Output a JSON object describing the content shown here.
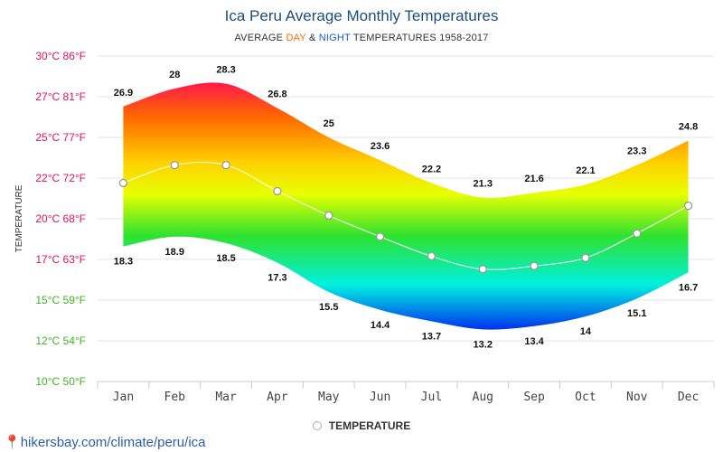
{
  "title": "Ica Peru Average Monthly Temperatures",
  "subtitle": {
    "prefix": "AVERAGE ",
    "day": "DAY",
    "mid": " & ",
    "night": "NIGHT",
    "suffix": " TEMPERATURES 1958-2017"
  },
  "legend": {
    "label": "TEMPERATURE"
  },
  "source": {
    "pin_icon": "location-pin-icon",
    "text": "hikersbay.com/climate/peru/ica"
  },
  "colors": {
    "title": "#1b4e7a",
    "day": "#ff6a00",
    "night": "#1a5bd6"
  },
  "chart_data": {
    "type": "area",
    "categories": [
      "Jan",
      "Feb",
      "Mar",
      "Apr",
      "May",
      "Jun",
      "Jul",
      "Aug",
      "Sep",
      "Oct",
      "Nov",
      "Dec"
    ],
    "day": [
      26.9,
      28,
      28.3,
      26.8,
      25,
      23.6,
      22.2,
      21.3,
      21.6,
      22.1,
      23.3,
      24.8
    ],
    "night": [
      18.3,
      18.9,
      18.5,
      17.3,
      15.5,
      14.4,
      13.7,
      13.2,
      13.4,
      14,
      15.1,
      16.7
    ],
    "series": [
      {
        "name": "TEMPERATURE",
        "values": [
          22.2,
          23.3,
          23.3,
          21.7,
          20.2,
          18.9,
          17.7,
          16.9,
          17.1,
          17.6,
          19.1,
          20.8
        ]
      }
    ],
    "ylabel": "TEMPERATURE",
    "ylim": [
      10,
      30
    ],
    "yticks": [
      {
        "c": 30,
        "label": "30°C 86°F",
        "color": "#e0115f"
      },
      {
        "c": 27.5,
        "label": "27°C 81°F",
        "color": "#e0115f"
      },
      {
        "c": 25,
        "label": "25°C 77°F",
        "color": "#e0115f"
      },
      {
        "c": 22.5,
        "label": "22°C 72°F",
        "color": "#e0115f"
      },
      {
        "c": 20,
        "label": "20°C 68°F",
        "color": "#e0115f"
      },
      {
        "c": 17.5,
        "label": "17°C 63°F",
        "color": "#e0115f"
      },
      {
        "c": 15,
        "label": "15°C 59°F",
        "color": "#3cb521"
      },
      {
        "c": 12.5,
        "label": "12°C 54°F",
        "color": "#3cb521"
      },
      {
        "c": 10,
        "label": "10°C 50°F",
        "color": "#3cb521"
      }
    ],
    "grid": true,
    "legend_position": "bottom-center"
  }
}
